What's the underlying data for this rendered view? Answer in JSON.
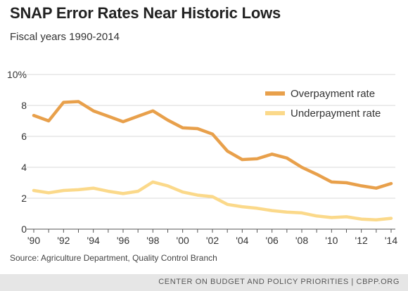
{
  "title": "SNAP Error Rates Near Historic Lows",
  "subtitle": "Fiscal years 1990-2014",
  "source": "Source: Agriculture Department, Quality Control Branch",
  "footer": "CENTER ON BUDGET AND POLICY PRIORITIES | CBPP.ORG",
  "colors": {
    "overpayment": "#e8a04b",
    "underpayment": "#fbd98a",
    "grid": "#d9d9d9",
    "axis": "#555555"
  },
  "chart_data": {
    "type": "line",
    "x": [
      1990,
      1991,
      1992,
      1993,
      1994,
      1995,
      1996,
      1997,
      1998,
      1999,
      2000,
      2001,
      2002,
      2003,
      2004,
      2005,
      2006,
      2007,
      2008,
      2009,
      2010,
      2011,
      2012,
      2013,
      2014
    ],
    "xtick_labels": [
      "'90",
      "'92",
      "'94",
      "'96",
      "'98",
      "'00",
      "'02",
      "'04",
      "'06",
      "'08",
      "'10",
      "'12",
      "'14"
    ],
    "xtick_values": [
      1990,
      1992,
      1994,
      1996,
      1998,
      2000,
      2002,
      2004,
      2006,
      2008,
      2010,
      2012,
      2014
    ],
    "ytick_labels": [
      "0",
      "2",
      "4",
      "6",
      "8",
      "10%"
    ],
    "ytick_values": [
      0,
      2,
      4,
      6,
      8,
      10
    ],
    "ylim": [
      0,
      10
    ],
    "legend_position": "top-right",
    "series": [
      {
        "name": "Overpayment rate",
        "color": "#e8a04b",
        "values": [
          7.35,
          7.0,
          8.2,
          8.25,
          7.65,
          7.3,
          6.95,
          7.3,
          7.65,
          7.05,
          6.55,
          6.5,
          6.15,
          5.05,
          4.5,
          4.55,
          4.85,
          4.6,
          4.0,
          3.55,
          3.05,
          3.0,
          2.8,
          2.65,
          2.95
        ]
      },
      {
        "name": "Underpayment rate",
        "color": "#fbd98a",
        "values": [
          2.5,
          2.35,
          2.5,
          2.55,
          2.65,
          2.45,
          2.3,
          2.45,
          3.05,
          2.8,
          2.4,
          2.2,
          2.1,
          1.6,
          1.45,
          1.35,
          1.2,
          1.1,
          1.05,
          0.85,
          0.75,
          0.8,
          0.65,
          0.6,
          0.7
        ]
      }
    ]
  }
}
